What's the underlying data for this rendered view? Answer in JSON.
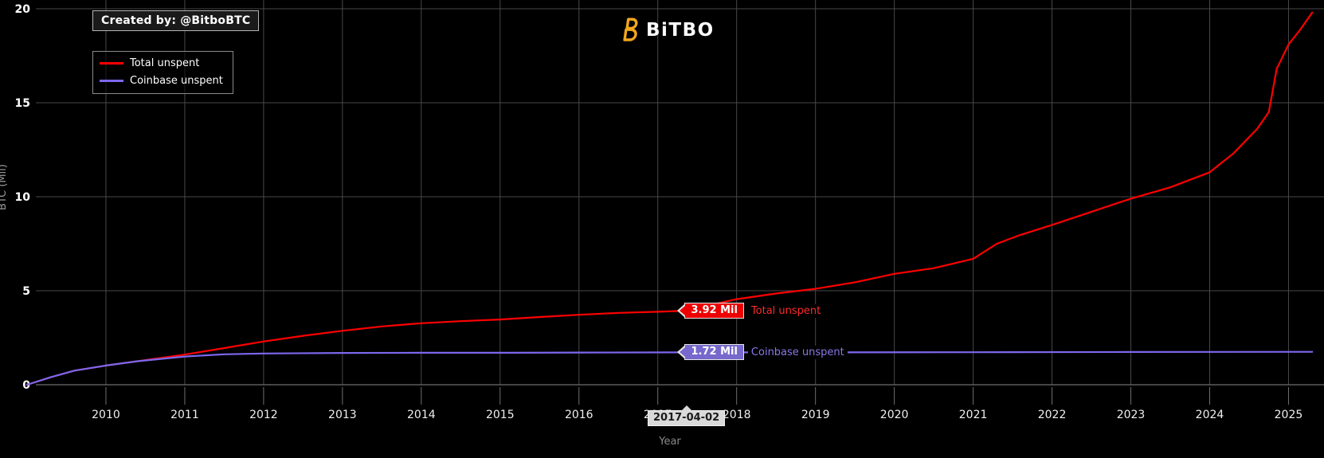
{
  "branding": {
    "created_by": "Created by: @BitboBTC",
    "logo_text": "BiTBO",
    "logo_color": "#f2a71b"
  },
  "legend": {
    "items": [
      {
        "label": "Total unspent",
        "color": "#ff0000"
      },
      {
        "label": "Coinbase unspent",
        "color": "#7b68ee"
      }
    ]
  },
  "tooltips": [
    {
      "value": "3.92 Mil",
      "label": "Total unspent",
      "box_color": "#ee0000",
      "text_color": "#ff2a2a"
    },
    {
      "value": "1.72 Mil",
      "label": "Coinbase unspent",
      "box_color": "#7668cc",
      "text_color": "#8878e8"
    }
  ],
  "axis_marker": {
    "date": "2017-04-02",
    "x": 2017.25
  },
  "chart_data": {
    "type": "line",
    "title": "",
    "xlabel": "Year",
    "ylabel": "BTC (Mil)",
    "xlim": [
      2009.0,
      2025.45
    ],
    "ylim": [
      0,
      20
    ],
    "x_ticks": [
      2010,
      2011,
      2012,
      2013,
      2014,
      2015,
      2016,
      2017,
      2018,
      2019,
      2020,
      2021,
      2022,
      2023,
      2024,
      2025
    ],
    "y_ticks": [
      0,
      5,
      10,
      15,
      20
    ],
    "grid": true,
    "legend_position": "top-left",
    "background": "#000000",
    "grid_color": "#484848",
    "baseline_color": "#8a8a8a",
    "series": [
      {
        "name": "Total unspent",
        "color": "#ff0000",
        "points": [
          [
            2009.0,
            0
          ],
          [
            2009.3,
            0.4
          ],
          [
            2009.6,
            0.75
          ],
          [
            2010.0,
            1.02
          ],
          [
            2010.4,
            1.25
          ],
          [
            2011.0,
            1.6
          ],
          [
            2011.5,
            1.95
          ],
          [
            2012.0,
            2.3
          ],
          [
            2012.5,
            2.6
          ],
          [
            2013.0,
            2.87
          ],
          [
            2013.5,
            3.1
          ],
          [
            2014.0,
            3.27
          ],
          [
            2014.5,
            3.38
          ],
          [
            2015.0,
            3.47
          ],
          [
            2015.5,
            3.6
          ],
          [
            2016.0,
            3.72
          ],
          [
            2016.5,
            3.82
          ],
          [
            2017.0,
            3.88
          ],
          [
            2017.25,
            3.92
          ],
          [
            2017.6,
            4.18
          ],
          [
            2018.0,
            4.55
          ],
          [
            2018.5,
            4.85
          ],
          [
            2019.0,
            5.1
          ],
          [
            2019.5,
            5.45
          ],
          [
            2020.0,
            5.9
          ],
          [
            2020.5,
            6.2
          ],
          [
            2021.0,
            6.7
          ],
          [
            2021.3,
            7.5
          ],
          [
            2021.6,
            7.97
          ],
          [
            2022.0,
            8.5
          ],
          [
            2022.5,
            9.2
          ],
          [
            2023.0,
            9.9
          ],
          [
            2023.5,
            10.5
          ],
          [
            2024.0,
            11.3
          ],
          [
            2024.3,
            12.3
          ],
          [
            2024.6,
            13.6
          ],
          [
            2024.75,
            14.5
          ],
          [
            2024.85,
            16.8
          ],
          [
            2025.0,
            18.1
          ],
          [
            2025.15,
            18.9
          ],
          [
            2025.3,
            19.8
          ]
        ]
      },
      {
        "name": "Coinbase unspent",
        "color": "#7b68ee",
        "points": [
          [
            2009.0,
            0
          ],
          [
            2009.3,
            0.4
          ],
          [
            2009.6,
            0.75
          ],
          [
            2010.0,
            1.02
          ],
          [
            2010.4,
            1.25
          ],
          [
            2011.0,
            1.5
          ],
          [
            2011.5,
            1.62
          ],
          [
            2012.0,
            1.66
          ],
          [
            2013.0,
            1.69
          ],
          [
            2014.0,
            1.7
          ],
          [
            2015.0,
            1.7
          ],
          [
            2016.0,
            1.71
          ],
          [
            2017.25,
            1.72
          ],
          [
            2019.0,
            1.72
          ],
          [
            2021.0,
            1.73
          ],
          [
            2023.0,
            1.74
          ],
          [
            2025.3,
            1.75
          ]
        ]
      }
    ],
    "markers": [
      {
        "x": 2017.25,
        "date": "2017-04-02",
        "values": {
          "Total unspent": 3.92,
          "Coinbase unspent": 1.72
        }
      }
    ]
  }
}
